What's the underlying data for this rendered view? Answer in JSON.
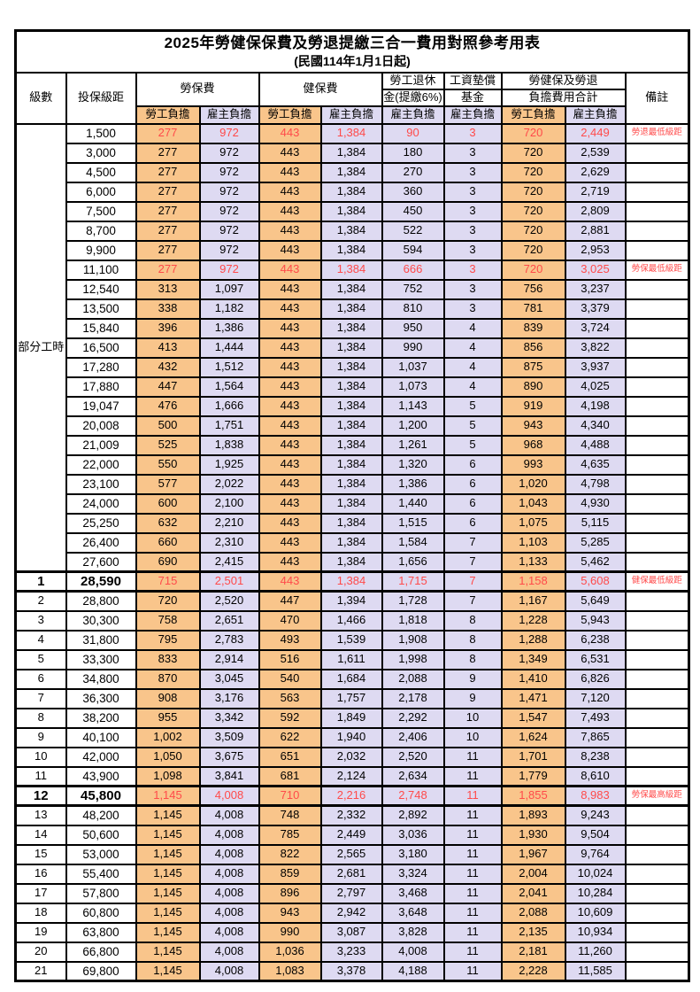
{
  "title": "2025年勞健保保費及勞退提繳三合一費用對照參考用表",
  "subtitle": "(民國114年1月1日起)",
  "header": {
    "level": "級數",
    "bracket": "投保級距",
    "labor_ins": "勞保費",
    "health_ins": "健保費",
    "pension_l1": "勞工退休",
    "pension_l2": "金(提繳6%)",
    "wage_fund_l1": "工資墊償",
    "wage_fund_l2": "基金",
    "total_l1": "勞健保及勞退",
    "total_l2": "負擔費用合計",
    "remark": "備註",
    "employee": "勞工負擔",
    "employer": "雇主負擔"
  },
  "part_time_label": "部分工時",
  "part_time_rowspan": 23,
  "colors": {
    "employee_bg": "#F9C58B",
    "employer_bg": "#DEDAF2",
    "highlight_red": "#FF4A4A",
    "border": "#000000"
  },
  "rows": [
    {
      "level": "",
      "bracket": "1,500",
      "li_emp": "277",
      "li_er": "972",
      "hi_emp": "443",
      "hi_er": "1,384",
      "pension_er": "90",
      "fund_er": "3",
      "tot_emp": "720",
      "tot_er": "2,449",
      "note": "勞退最低級距",
      "red": true,
      "emph": false
    },
    {
      "level": "",
      "bracket": "3,000",
      "li_emp": "277",
      "li_er": "972",
      "hi_emp": "443",
      "hi_er": "1,384",
      "pension_er": "180",
      "fund_er": "3",
      "tot_emp": "720",
      "tot_er": "2,539",
      "note": "",
      "red": false,
      "emph": false
    },
    {
      "level": "",
      "bracket": "4,500",
      "li_emp": "277",
      "li_er": "972",
      "hi_emp": "443",
      "hi_er": "1,384",
      "pension_er": "270",
      "fund_er": "3",
      "tot_emp": "720",
      "tot_er": "2,629",
      "note": "",
      "red": false,
      "emph": false
    },
    {
      "level": "",
      "bracket": "6,000",
      "li_emp": "277",
      "li_er": "972",
      "hi_emp": "443",
      "hi_er": "1,384",
      "pension_er": "360",
      "fund_er": "3",
      "tot_emp": "720",
      "tot_er": "2,719",
      "note": "",
      "red": false,
      "emph": false
    },
    {
      "level": "",
      "bracket": "7,500",
      "li_emp": "277",
      "li_er": "972",
      "hi_emp": "443",
      "hi_er": "1,384",
      "pension_er": "450",
      "fund_er": "3",
      "tot_emp": "720",
      "tot_er": "2,809",
      "note": "",
      "red": false,
      "emph": false
    },
    {
      "level": "",
      "bracket": "8,700",
      "li_emp": "277",
      "li_er": "972",
      "hi_emp": "443",
      "hi_er": "1,384",
      "pension_er": "522",
      "fund_er": "3",
      "tot_emp": "720",
      "tot_er": "2,881",
      "note": "",
      "red": false,
      "emph": false
    },
    {
      "level": "",
      "bracket": "9,900",
      "li_emp": "277",
      "li_er": "972",
      "hi_emp": "443",
      "hi_er": "1,384",
      "pension_er": "594",
      "fund_er": "3",
      "tot_emp": "720",
      "tot_er": "2,953",
      "note": "",
      "red": false,
      "emph": false
    },
    {
      "level": "",
      "bracket": "11,100",
      "li_emp": "277",
      "li_er": "972",
      "hi_emp": "443",
      "hi_er": "1,384",
      "pension_er": "666",
      "fund_er": "3",
      "tot_emp": "720",
      "tot_er": "3,025",
      "note": "勞保最低級距",
      "red": true,
      "emph": false
    },
    {
      "level": "",
      "bracket": "12,540",
      "li_emp": "313",
      "li_er": "1,097",
      "hi_emp": "443",
      "hi_er": "1,384",
      "pension_er": "752",
      "fund_er": "3",
      "tot_emp": "756",
      "tot_er": "3,237",
      "note": "",
      "red": false,
      "emph": false
    },
    {
      "level": "",
      "bracket": "13,500",
      "li_emp": "338",
      "li_er": "1,182",
      "hi_emp": "443",
      "hi_er": "1,384",
      "pension_er": "810",
      "fund_er": "3",
      "tot_emp": "781",
      "tot_er": "3,379",
      "note": "",
      "red": false,
      "emph": false
    },
    {
      "level": "",
      "bracket": "15,840",
      "li_emp": "396",
      "li_er": "1,386",
      "hi_emp": "443",
      "hi_er": "1,384",
      "pension_er": "950",
      "fund_er": "4",
      "tot_emp": "839",
      "tot_er": "3,724",
      "note": "",
      "red": false,
      "emph": false
    },
    {
      "level": "",
      "bracket": "16,500",
      "li_emp": "413",
      "li_er": "1,444",
      "hi_emp": "443",
      "hi_er": "1,384",
      "pension_er": "990",
      "fund_er": "4",
      "tot_emp": "856",
      "tot_er": "3,822",
      "note": "",
      "red": false,
      "emph": false
    },
    {
      "level": "",
      "bracket": "17,280",
      "li_emp": "432",
      "li_er": "1,512",
      "hi_emp": "443",
      "hi_er": "1,384",
      "pension_er": "1,037",
      "fund_er": "4",
      "tot_emp": "875",
      "tot_er": "3,937",
      "note": "",
      "red": false,
      "emph": false
    },
    {
      "level": "",
      "bracket": "17,880",
      "li_emp": "447",
      "li_er": "1,564",
      "hi_emp": "443",
      "hi_er": "1,384",
      "pension_er": "1,073",
      "fund_er": "4",
      "tot_emp": "890",
      "tot_er": "4,025",
      "note": "",
      "red": false,
      "emph": false
    },
    {
      "level": "",
      "bracket": "19,047",
      "li_emp": "476",
      "li_er": "1,666",
      "hi_emp": "443",
      "hi_er": "1,384",
      "pension_er": "1,143",
      "fund_er": "5",
      "tot_emp": "919",
      "tot_er": "4,198",
      "note": "",
      "red": false,
      "emph": false
    },
    {
      "level": "",
      "bracket": "20,008",
      "li_emp": "500",
      "li_er": "1,751",
      "hi_emp": "443",
      "hi_er": "1,384",
      "pension_er": "1,200",
      "fund_er": "5",
      "tot_emp": "943",
      "tot_er": "4,340",
      "note": "",
      "red": false,
      "emph": false
    },
    {
      "level": "",
      "bracket": "21,009",
      "li_emp": "525",
      "li_er": "1,838",
      "hi_emp": "443",
      "hi_er": "1,384",
      "pension_er": "1,261",
      "fund_er": "5",
      "tot_emp": "968",
      "tot_er": "4,488",
      "note": "",
      "red": false,
      "emph": false
    },
    {
      "level": "",
      "bracket": "22,000",
      "li_emp": "550",
      "li_er": "1,925",
      "hi_emp": "443",
      "hi_er": "1,384",
      "pension_er": "1,320",
      "fund_er": "6",
      "tot_emp": "993",
      "tot_er": "4,635",
      "note": "",
      "red": false,
      "emph": false
    },
    {
      "level": "",
      "bracket": "23,100",
      "li_emp": "577",
      "li_er": "2,022",
      "hi_emp": "443",
      "hi_er": "1,384",
      "pension_er": "1,386",
      "fund_er": "6",
      "tot_emp": "1,020",
      "tot_er": "4,798",
      "note": "",
      "red": false,
      "emph": false
    },
    {
      "level": "",
      "bracket": "24,000",
      "li_emp": "600",
      "li_er": "2,100",
      "hi_emp": "443",
      "hi_er": "1,384",
      "pension_er": "1,440",
      "fund_er": "6",
      "tot_emp": "1,043",
      "tot_er": "4,930",
      "note": "",
      "red": false,
      "emph": false
    },
    {
      "level": "",
      "bracket": "25,250",
      "li_emp": "632",
      "li_er": "2,210",
      "hi_emp": "443",
      "hi_er": "1,384",
      "pension_er": "1,515",
      "fund_er": "6",
      "tot_emp": "1,075",
      "tot_er": "5,115",
      "note": "",
      "red": false,
      "emph": false
    },
    {
      "level": "",
      "bracket": "26,400",
      "li_emp": "660",
      "li_er": "2,310",
      "hi_emp": "443",
      "hi_er": "1,384",
      "pension_er": "1,584",
      "fund_er": "7",
      "tot_emp": "1,103",
      "tot_er": "5,285",
      "note": "",
      "red": false,
      "emph": false
    },
    {
      "level": "",
      "bracket": "27,600",
      "li_emp": "690",
      "li_er": "2,415",
      "hi_emp": "443",
      "hi_er": "1,384",
      "pension_er": "1,656",
      "fund_er": "7",
      "tot_emp": "1,133",
      "tot_er": "5,462",
      "note": "",
      "red": false,
      "emph": false
    },
    {
      "level": "1",
      "bracket": "28,590",
      "li_emp": "715",
      "li_er": "2,501",
      "hi_emp": "443",
      "hi_er": "1,384",
      "pension_er": "1,715",
      "fund_er": "7",
      "tot_emp": "1,158",
      "tot_er": "5,608",
      "note": "健保最低級距",
      "red": true,
      "emph": true
    },
    {
      "level": "2",
      "bracket": "28,800",
      "li_emp": "720",
      "li_er": "2,520",
      "hi_emp": "447",
      "hi_er": "1,394",
      "pension_er": "1,728",
      "fund_er": "7",
      "tot_emp": "1,167",
      "tot_er": "5,649",
      "note": "",
      "red": false,
      "emph": false
    },
    {
      "level": "3",
      "bracket": "30,300",
      "li_emp": "758",
      "li_er": "2,651",
      "hi_emp": "470",
      "hi_er": "1,466",
      "pension_er": "1,818",
      "fund_er": "8",
      "tot_emp": "1,228",
      "tot_er": "5,943",
      "note": "",
      "red": false,
      "emph": false
    },
    {
      "level": "4",
      "bracket": "31,800",
      "li_emp": "795",
      "li_er": "2,783",
      "hi_emp": "493",
      "hi_er": "1,539",
      "pension_er": "1,908",
      "fund_er": "8",
      "tot_emp": "1,288",
      "tot_er": "6,238",
      "note": "",
      "red": false,
      "emph": false
    },
    {
      "level": "5",
      "bracket": "33,300",
      "li_emp": "833",
      "li_er": "2,914",
      "hi_emp": "516",
      "hi_er": "1,611",
      "pension_er": "1,998",
      "fund_er": "8",
      "tot_emp": "1,349",
      "tot_er": "6,531",
      "note": "",
      "red": false,
      "emph": false
    },
    {
      "level": "6",
      "bracket": "34,800",
      "li_emp": "870",
      "li_er": "3,045",
      "hi_emp": "540",
      "hi_er": "1,684",
      "pension_er": "2,088",
      "fund_er": "9",
      "tot_emp": "1,410",
      "tot_er": "6,826",
      "note": "",
      "red": false,
      "emph": false
    },
    {
      "level": "7",
      "bracket": "36,300",
      "li_emp": "908",
      "li_er": "3,176",
      "hi_emp": "563",
      "hi_er": "1,757",
      "pension_er": "2,178",
      "fund_er": "9",
      "tot_emp": "1,471",
      "tot_er": "7,120",
      "note": "",
      "red": false,
      "emph": false
    },
    {
      "level": "8",
      "bracket": "38,200",
      "li_emp": "955",
      "li_er": "3,342",
      "hi_emp": "592",
      "hi_er": "1,849",
      "pension_er": "2,292",
      "fund_er": "10",
      "tot_emp": "1,547",
      "tot_er": "7,493",
      "note": "",
      "red": false,
      "emph": false
    },
    {
      "level": "9",
      "bracket": "40,100",
      "li_emp": "1,002",
      "li_er": "3,509",
      "hi_emp": "622",
      "hi_er": "1,940",
      "pension_er": "2,406",
      "fund_er": "10",
      "tot_emp": "1,624",
      "tot_er": "7,865",
      "note": "",
      "red": false,
      "emph": false
    },
    {
      "level": "10",
      "bracket": "42,000",
      "li_emp": "1,050",
      "li_er": "3,675",
      "hi_emp": "651",
      "hi_er": "2,032",
      "pension_er": "2,520",
      "fund_er": "11",
      "tot_emp": "1,701",
      "tot_er": "8,238",
      "note": "",
      "red": false,
      "emph": false
    },
    {
      "level": "11",
      "bracket": "43,900",
      "li_emp": "1,098",
      "li_er": "3,841",
      "hi_emp": "681",
      "hi_er": "2,124",
      "pension_er": "2,634",
      "fund_er": "11",
      "tot_emp": "1,779",
      "tot_er": "8,610",
      "note": "",
      "red": false,
      "emph": false
    },
    {
      "level": "12",
      "bracket": "45,800",
      "li_emp": "1,145",
      "li_er": "4,008",
      "hi_emp": "710",
      "hi_er": "2,216",
      "pension_er": "2,748",
      "fund_er": "11",
      "tot_emp": "1,855",
      "tot_er": "8,983",
      "note": "勞保最高級距",
      "red": true,
      "emph": true
    },
    {
      "level": "13",
      "bracket": "48,200",
      "li_emp": "1,145",
      "li_er": "4,008",
      "hi_emp": "748",
      "hi_er": "2,332",
      "pension_er": "2,892",
      "fund_er": "11",
      "tot_emp": "1,893",
      "tot_er": "9,243",
      "note": "",
      "red": false,
      "emph": false
    },
    {
      "level": "14",
      "bracket": "50,600",
      "li_emp": "1,145",
      "li_er": "4,008",
      "hi_emp": "785",
      "hi_er": "2,449",
      "pension_er": "3,036",
      "fund_er": "11",
      "tot_emp": "1,930",
      "tot_er": "9,504",
      "note": "",
      "red": false,
      "emph": false
    },
    {
      "level": "15",
      "bracket": "53,000",
      "li_emp": "1,145",
      "li_er": "4,008",
      "hi_emp": "822",
      "hi_er": "2,565",
      "pension_er": "3,180",
      "fund_er": "11",
      "tot_emp": "1,967",
      "tot_er": "9,764",
      "note": "",
      "red": false,
      "emph": false
    },
    {
      "level": "16",
      "bracket": "55,400",
      "li_emp": "1,145",
      "li_er": "4,008",
      "hi_emp": "859",
      "hi_er": "2,681",
      "pension_er": "3,324",
      "fund_er": "11",
      "tot_emp": "2,004",
      "tot_er": "10,024",
      "note": "",
      "red": false,
      "emph": false
    },
    {
      "level": "17",
      "bracket": "57,800",
      "li_emp": "1,145",
      "li_er": "4,008",
      "hi_emp": "896",
      "hi_er": "2,797",
      "pension_er": "3,468",
      "fund_er": "11",
      "tot_emp": "2,041",
      "tot_er": "10,284",
      "note": "",
      "red": false,
      "emph": false
    },
    {
      "level": "18",
      "bracket": "60,800",
      "li_emp": "1,145",
      "li_er": "4,008",
      "hi_emp": "943",
      "hi_er": "2,942",
      "pension_er": "3,648",
      "fund_er": "11",
      "tot_emp": "2,088",
      "tot_er": "10,609",
      "note": "",
      "red": false,
      "emph": false
    },
    {
      "level": "19",
      "bracket": "63,800",
      "li_emp": "1,145",
      "li_er": "4,008",
      "hi_emp": "990",
      "hi_er": "3,087",
      "pension_er": "3,828",
      "fund_er": "11",
      "tot_emp": "2,135",
      "tot_er": "10,934",
      "note": "",
      "red": false,
      "emph": false
    },
    {
      "level": "20",
      "bracket": "66,800",
      "li_emp": "1,145",
      "li_er": "4,008",
      "hi_emp": "1,036",
      "hi_er": "3,233",
      "pension_er": "4,008",
      "fund_er": "11",
      "tot_emp": "2,181",
      "tot_er": "11,260",
      "note": "",
      "red": false,
      "emph": false
    },
    {
      "level": "21",
      "bracket": "69,800",
      "li_emp": "1,145",
      "li_er": "4,008",
      "hi_emp": "1,083",
      "hi_er": "3,378",
      "pension_er": "4,188",
      "fund_er": "11",
      "tot_emp": "2,228",
      "tot_er": "11,585",
      "note": "",
      "red": false,
      "emph": false
    }
  ]
}
